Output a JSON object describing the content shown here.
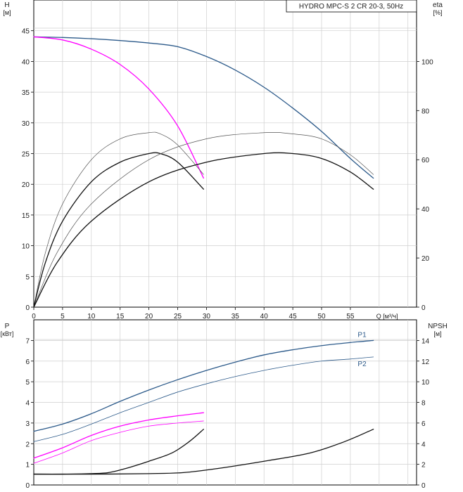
{
  "chart_data": [
    {
      "id": "head_eff",
      "type": "line",
      "title": "HYDRO MPC-S 2 CR 20-3, 50Hz",
      "y_left_label": [
        "H",
        "[м]"
      ],
      "y_right_label": [
        "eta",
        "[%]"
      ],
      "x_label": "Q [м³/ч]",
      "x_ticks": [
        0,
        5,
        10,
        15,
        20,
        25,
        30,
        35,
        40,
        45,
        50,
        55
      ],
      "y_left_ticks": [
        0,
        5,
        10,
        15,
        20,
        25,
        30,
        35,
        40,
        45
      ],
      "y_right_ticks": [
        0,
        20,
        40,
        60,
        80,
        100
      ],
      "xlim": [
        0,
        66.5
      ],
      "ylim_left": [
        0,
        50
      ],
      "ylim_right": [
        0,
        125
      ],
      "series": [
        {
          "name": "H two pumps",
          "axis": "left",
          "color": "#2c5a8a",
          "width": 1.3,
          "x": [
            0,
            5,
            10,
            15,
            20,
            25,
            30,
            35,
            40,
            45,
            50,
            55,
            59
          ],
          "y": [
            44.0,
            43.9,
            43.7,
            43.4,
            43.0,
            42.4,
            40.8,
            38.6,
            35.8,
            32.4,
            28.6,
            24.2,
            21.0
          ]
        },
        {
          "name": "H one pump",
          "axis": "left",
          "color": "#ff00ff",
          "width": 1.3,
          "x": [
            0,
            5,
            10,
            15,
            20,
            25,
            29.5
          ],
          "y": [
            44.0,
            43.5,
            42.0,
            39.5,
            35.5,
            29.5,
            21.0
          ]
        },
        {
          "name": "eta one pump upper",
          "axis": "right",
          "color": "#555555",
          "width": 0.7,
          "x": [
            0,
            2,
            5,
            10,
            15,
            20,
            22,
            25,
            29.5
          ],
          "y": [
            0,
            22,
            42,
            60,
            68.5,
            71,
            70.5,
            66,
            54
          ]
        },
        {
          "name": "eta one pump",
          "axis": "right",
          "color": "#111111",
          "width": 1.3,
          "x": [
            0,
            2,
            5,
            10,
            15,
            20,
            22,
            25,
            29.5
          ],
          "y": [
            0,
            18,
            35,
            51,
            59,
            62.5,
            62.5,
            59,
            48
          ]
        },
        {
          "name": "eta two pumps upper",
          "axis": "right",
          "color": "#555555",
          "width": 0.7,
          "x": [
            0,
            4,
            10,
            20,
            30,
            40,
            45,
            50,
            55,
            59
          ],
          "y": [
            0,
            22,
            42,
            60,
            68.5,
            71,
            70.5,
            68.5,
            62,
            54
          ]
        },
        {
          "name": "eta two pumps",
          "axis": "right",
          "color": "#111111",
          "width": 1.3,
          "x": [
            0,
            4,
            10,
            20,
            30,
            40,
            45,
            50,
            55,
            59
          ],
          "y": [
            0,
            18,
            35,
            51,
            59,
            62.5,
            62.5,
            60.5,
            55,
            48
          ]
        }
      ]
    },
    {
      "id": "power_npsh",
      "type": "line",
      "y_left_label": [
        "P",
        "[кВт]"
      ],
      "y_right_label": [
        "NPSH",
        "[м]"
      ],
      "x_ticks": [
        0,
        5,
        10,
        15,
        20,
        25,
        30,
        35,
        40,
        45,
        50,
        55
      ],
      "y_left_ticks": [
        0,
        1,
        2,
        3,
        4,
        5,
        6,
        7
      ],
      "y_right_ticks": [
        0,
        2,
        4,
        6,
        8,
        10,
        12,
        14
      ],
      "xlim": [
        0,
        66.5
      ],
      "ylim_left": [
        0,
        8
      ],
      "ylim_right": [
        0,
        16
      ],
      "series": [
        {
          "name": "P1",
          "label": "P1",
          "axis": "left",
          "color": "#2c5a8a",
          "width": 1.3,
          "x": [
            0,
            5,
            10,
            15,
            20,
            25,
            30,
            35,
            40,
            45,
            50,
            55,
            59
          ],
          "y": [
            2.6,
            2.95,
            3.45,
            4.05,
            4.6,
            5.1,
            5.55,
            5.95,
            6.3,
            6.55,
            6.75,
            6.9,
            7.0
          ]
        },
        {
          "name": "P2",
          "label": "P2",
          "axis": "left",
          "color": "#2c5a8a",
          "width": 0.8,
          "x": [
            0,
            5,
            10,
            15,
            20,
            25,
            30,
            35,
            40,
            45,
            50,
            55,
            59
          ],
          "y": [
            2.1,
            2.45,
            2.95,
            3.5,
            4.0,
            4.5,
            4.9,
            5.25,
            5.55,
            5.8,
            6.0,
            6.1,
            6.2
          ]
        },
        {
          "name": "P1 one pump",
          "axis": "left",
          "color": "#ff00ff",
          "width": 1.3,
          "x": [
            0,
            5,
            10,
            15,
            20,
            25,
            29.5
          ],
          "y": [
            1.3,
            1.8,
            2.4,
            2.85,
            3.15,
            3.35,
            3.5
          ]
        },
        {
          "name": "P2 one pump",
          "axis": "left",
          "color": "#ff00ff",
          "width": 0.8,
          "x": [
            0,
            5,
            10,
            15,
            20,
            25,
            29.5
          ],
          "y": [
            1.05,
            1.55,
            2.15,
            2.55,
            2.85,
            3.0,
            3.1
          ]
        },
        {
          "name": "NPSH one pump",
          "axis": "right",
          "color": "#111111",
          "width": 1.3,
          "x": [
            0,
            5,
            10,
            13,
            16,
            20,
            24,
            27,
            29.5
          ],
          "y": [
            1.05,
            1.05,
            1.1,
            1.2,
            1.6,
            2.3,
            3.1,
            4.2,
            5.4
          ]
        },
        {
          "name": "NPSH two pumps",
          "axis": "right",
          "color": "#111111",
          "width": 1.3,
          "x": [
            0,
            10,
            20,
            26,
            32,
            40,
            48,
            54,
            59
          ],
          "y": [
            1.05,
            1.05,
            1.1,
            1.2,
            1.6,
            2.3,
            3.1,
            4.2,
            5.4
          ]
        }
      ]
    }
  ]
}
